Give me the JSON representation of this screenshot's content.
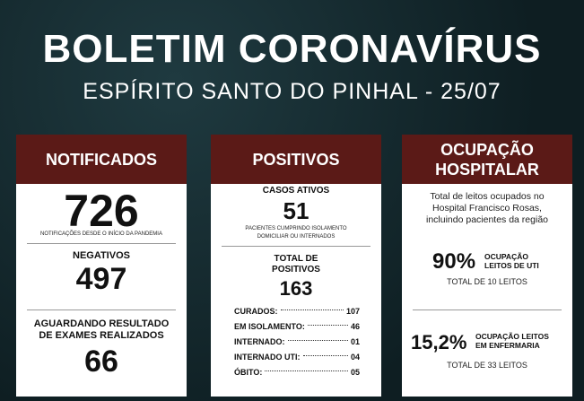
{
  "header": {
    "title": "BOLETIM CORONAVÍRUS",
    "subtitle": "ESPÍRITO SANTO DO PINHAL - 25/07"
  },
  "cards": [
    {
      "heading": [
        "NOTIFICADOS"
      ],
      "total": "726",
      "total_note": "NOTIFICAÇÕES DESDE O INÍCIO DA PANDEMIA",
      "negatives_label": "NEGATIVOS",
      "negatives": "497",
      "pending_label": [
        "AGUARDANDO RESULTADO",
        "DE EXAMES REALIZADOS"
      ],
      "pending": "66"
    },
    {
      "heading": [
        "POSITIVOS"
      ],
      "active_label": "CASOS ATIVOS",
      "active": "51",
      "active_note": [
        "PACIENTES CUMPRINDO ISOLAMENTO",
        "DOMICILIAR OU INTERNADOS"
      ],
      "total_label": [
        "TOTAL DE",
        "POSITIVOS"
      ],
      "total": "163",
      "rows": [
        [
          "CURADOS:",
          "107"
        ],
        [
          "EM ISOLAMENTO:",
          "46"
        ],
        [
          "INTERNADO:",
          "01"
        ],
        [
          "INTERNADO UTI:",
          "04"
        ],
        [
          "ÓBITO:",
          "05"
        ]
      ]
    },
    {
      "heading": [
        "OCUPAÇÃO",
        "HOSPITALAR"
      ],
      "intro": [
        "Total de leitos ocupados no",
        "Hospital Francisco Rosas,",
        "incluindo pacientes da região"
      ],
      "icu_value": "90%",
      "icu_label": [
        "OCUPAÇÃO",
        "LEITOS DE UTI"
      ],
      "icu_total": "TOTAL DE 10 LEITOS",
      "ward_value": "15,2%",
      "ward_label": [
        "OCUPAÇÃO LEITOS",
        "EM ENFERMARIA"
      ],
      "ward_total": "TOTAL DE 33 LEITOS"
    }
  ]
}
